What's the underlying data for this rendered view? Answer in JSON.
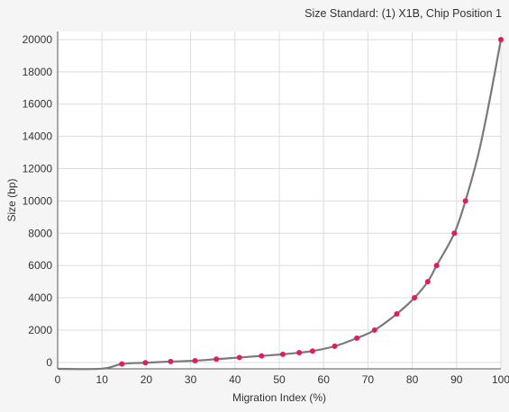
{
  "title": "Size Standard: (1) X1B, Chip Position 1",
  "colors": {
    "background": "#f5f5f5",
    "plot_background": "#ffffff",
    "grid": "#dcdcdc",
    "curve": "#7a7a7a",
    "points": "#e8195a"
  },
  "chart_data": {
    "type": "scatter",
    "xlabel": "Migration Index (%)",
    "ylabel": "Size (bp)",
    "xlim": [
      0,
      100
    ],
    "ylim": [
      -400,
      20500
    ],
    "x_ticks": [
      0,
      10,
      20,
      30,
      40,
      50,
      60,
      70,
      80,
      90,
      100
    ],
    "y_ticks": [
      0,
      2000,
      4000,
      6000,
      8000,
      10000,
      12000,
      14000,
      16000,
      18000,
      20000
    ],
    "grid": true,
    "series": [
      {
        "type": "scatter",
        "x": [
          14.5,
          19.8,
          25.5,
          31.0,
          35.8,
          41.0,
          46.0,
          50.8,
          54.5,
          57.5,
          62.5,
          67.5,
          71.5,
          76.5,
          80.5,
          83.5,
          85.5,
          89.5,
          92.0,
          100.0
        ],
        "y": [
          -100,
          -25,
          50,
          100,
          200,
          300,
          400,
          500,
          600,
          700,
          1000,
          1500,
          2000,
          3000,
          4000,
          5000,
          6000,
          8000,
          10000,
          20000
        ]
      },
      {
        "type": "line",
        "x": [
          0,
          10,
          14.5,
          19.8,
          25.5,
          31.0,
          35.8,
          41.0,
          46.0,
          50.8,
          54.5,
          57.5,
          62.5,
          67.5,
          71.5,
          76.5,
          80.5,
          83.5,
          85.5,
          89.5,
          92.0,
          95.0,
          97.5,
          100.0
        ],
        "y": [
          -400,
          -390,
          -100,
          -25,
          50,
          100,
          200,
          300,
          400,
          500,
          600,
          700,
          1000,
          1500,
          2000,
          3000,
          4000,
          5000,
          6000,
          8000,
          10000,
          13000,
          16300,
          20000
        ]
      }
    ]
  }
}
